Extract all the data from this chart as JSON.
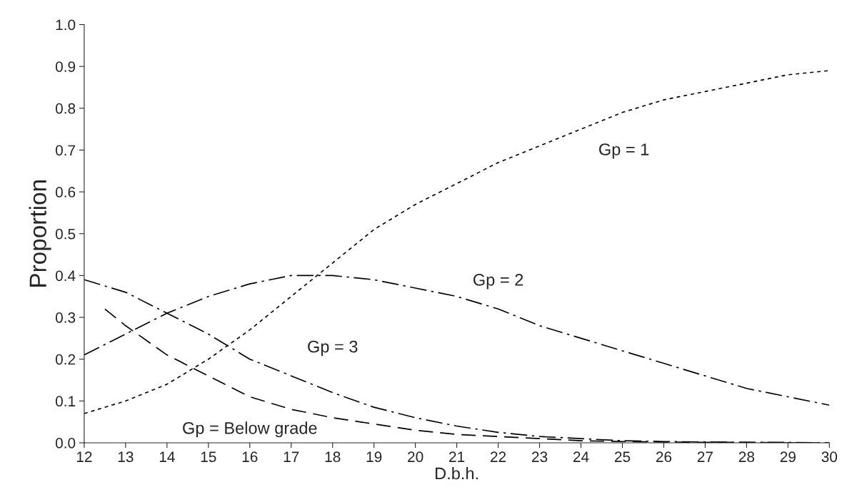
{
  "chart_data": {
    "type": "line",
    "xlabel": "D.b.h.",
    "ylabel": "Proportion",
    "xlim": [
      12,
      30
    ],
    "xticks": [
      12,
      13,
      14,
      15,
      16,
      17,
      18,
      19,
      20,
      21,
      22,
      23,
      24,
      25,
      26,
      27,
      28,
      29,
      30
    ],
    "ylim": [
      0,
      1
    ],
    "yticks": [
      {
        "value": 0,
        "label": "0.0"
      },
      {
        "value": 0.1,
        "label": "0.1"
      },
      {
        "value": 0.2,
        "label": "0.2"
      },
      {
        "value": 0.3,
        "label": "0.3"
      },
      {
        "value": 0.4,
        "label": "0.4"
      },
      {
        "value": 0.5,
        "label": "0.5"
      },
      {
        "value": 0.6,
        "label": "0.6"
      },
      {
        "value": 0.7,
        "label": "0.7"
      },
      {
        "value": 0.8,
        "label": "0.8"
      },
      {
        "value": 0.9,
        "label": "0.9"
      },
      {
        "value": 1,
        "label": "1.0"
      }
    ],
    "grid": false,
    "legend": false,
    "series": [
      {
        "name": "Gp = 1",
        "color": "#000000",
        "line_style": "dotted",
        "x": [
          12,
          13,
          14,
          15,
          16,
          17,
          18,
          19,
          20,
          21,
          22,
          23,
          24,
          25,
          26,
          27,
          28,
          29,
          30
        ],
        "values": [
          0.07,
          0.1,
          0.14,
          0.2,
          0.27,
          0.35,
          0.43,
          0.51,
          0.57,
          0.62,
          0.67,
          0.71,
          0.75,
          0.79,
          0.82,
          0.84,
          0.86,
          0.88,
          0.89
        ]
      },
      {
        "name": "Gp = 2",
        "color": "#000000",
        "line_style": "dashdot",
        "x": [
          12,
          13,
          14,
          15,
          16,
          17,
          18,
          19,
          20,
          21,
          22,
          23,
          24,
          25,
          26,
          27,
          28,
          29,
          30
        ],
        "values": [
          0.21,
          0.26,
          0.31,
          0.35,
          0.38,
          0.4,
          0.4,
          0.39,
          0.37,
          0.35,
          0.32,
          0.28,
          0.25,
          0.22,
          0.19,
          0.16,
          0.13,
          0.11,
          0.09
        ]
      },
      {
        "name": "Gp = 3",
        "color": "#000000",
        "line_style": "dashdot",
        "x": [
          12,
          13,
          14,
          15,
          16,
          17,
          18,
          19,
          20,
          21,
          22,
          23,
          24,
          25,
          26,
          27,
          28,
          29,
          30
        ],
        "values": [
          0.39,
          0.36,
          0.31,
          0.26,
          0.2,
          0.16,
          0.12,
          0.085,
          0.06,
          0.04,
          0.025,
          0.015,
          0.01,
          0.005,
          0.003,
          0.002,
          0.001,
          0.001,
          0
        ]
      },
      {
        "name": "Gp = Below grade",
        "color": "#000000",
        "line_style": "dashed",
        "x": [
          12.5,
          13,
          14,
          15,
          16,
          17,
          18,
          19,
          20,
          21,
          22,
          23,
          24,
          25,
          26,
          27,
          28,
          29,
          30
        ],
        "values": [
          0.32,
          0.28,
          0.21,
          0.16,
          0.11,
          0.08,
          0.06,
          0.045,
          0.03,
          0.02,
          0.015,
          0.01,
          0.005,
          0.003,
          0.002,
          0.001,
          0.001,
          0,
          0
        ]
      }
    ]
  }
}
